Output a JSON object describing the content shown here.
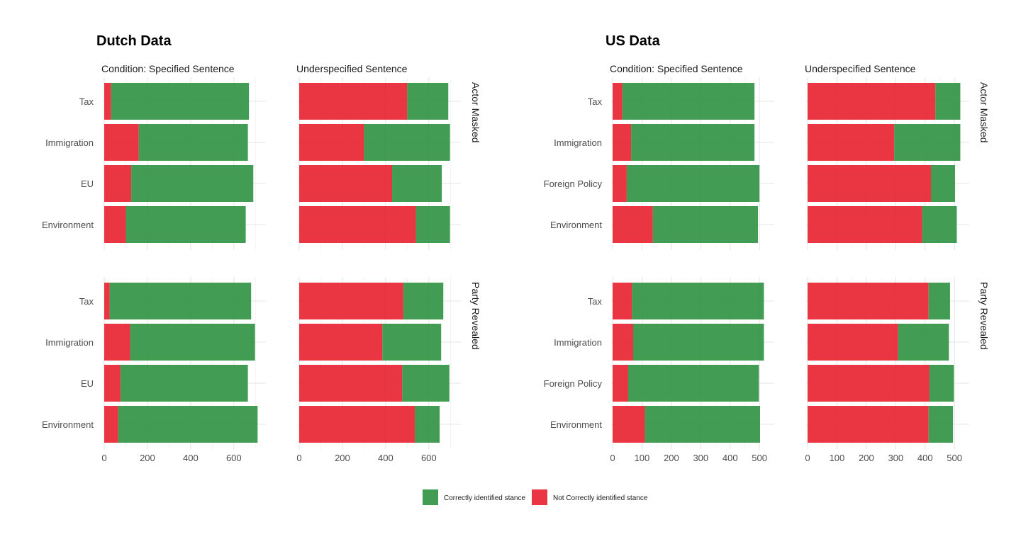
{
  "colors": {
    "correct": "#2E9140",
    "incorrect": "#E8202F"
  },
  "legend": [
    {
      "label": "Correctly identified stance",
      "color": "#2E9140"
    },
    {
      "label": "Not Correctly identified stance",
      "color": "#E8202F"
    }
  ],
  "chart_data": [
    {
      "type": "bar",
      "orientation": "horizontal",
      "stacked": true,
      "title": "Dutch Data",
      "column_labels": [
        "Condition: Specified Sentence",
        "Underspecified Sentence"
      ],
      "row_labels": [
        "Actor Masked",
        "Party Revealed"
      ],
      "xlim": [
        0,
        740
      ],
      "x_ticks": [
        0,
        200,
        400,
        600
      ],
      "categories": [
        "Tax",
        "Immigration",
        "EU",
        "Environment"
      ],
      "panels": [
        {
          "column": 0,
          "row": 0,
          "series": [
            {
              "name": "Not Correctly identified stance",
              "values": [
                32,
                160,
                125,
                100
              ]
            },
            {
              "name": "Correctly identified stance",
              "values": [
                638,
                505,
                565,
                555
              ]
            }
          ]
        },
        {
          "column": 1,
          "row": 0,
          "series": [
            {
              "name": "Not Correctly identified stance",
              "values": [
                500,
                300,
                430,
                540
              ]
            },
            {
              "name": "Correctly identified stance",
              "values": [
                190,
                398,
                230,
                158
              ]
            }
          ]
        },
        {
          "column": 0,
          "row": 1,
          "series": [
            {
              "name": "Not Correctly identified stance",
              "values": [
                25,
                120,
                75,
                65
              ]
            },
            {
              "name": "Correctly identified stance",
              "values": [
                655,
                578,
                590,
                645
              ]
            }
          ]
        },
        {
          "column": 1,
          "row": 1,
          "series": [
            {
              "name": "Not Correctly identified stance",
              "values": [
                482,
                385,
                477,
                535
              ]
            },
            {
              "name": "Correctly identified stance",
              "values": [
                185,
                272,
                218,
                115
              ]
            }
          ]
        }
      ]
    },
    {
      "type": "bar",
      "orientation": "horizontal",
      "stacked": true,
      "title": "US Data",
      "column_labels": [
        "Condition: Specified Sentence",
        "Underspecified Sentence"
      ],
      "row_labels": [
        "Actor Masked",
        "Party Revealed"
      ],
      "xlim": [
        0,
        540
      ],
      "x_ticks": [
        0,
        100,
        200,
        300,
        400,
        500
      ],
      "categories": [
        "Tax",
        "Immigration",
        "Foreign Policy",
        "Environment"
      ],
      "panels": [
        {
          "column": 0,
          "row": 0,
          "series": [
            {
              "name": "Not Correctly identified stance",
              "values": [
                33,
                63,
                48,
                137
              ]
            },
            {
              "name": "Correctly identified stance",
              "values": [
                450,
                420,
                452,
                358
              ]
            }
          ]
        },
        {
          "column": 1,
          "row": 0,
          "series": [
            {
              "name": "Not Correctly identified stance",
              "values": [
                435,
                295,
                420,
                390
              ]
            },
            {
              "name": "Correctly identified stance",
              "values": [
                85,
                225,
                82,
                118
              ]
            }
          ]
        },
        {
          "column": 0,
          "row": 1,
          "series": [
            {
              "name": "Not Correctly identified stance",
              "values": [
                66,
                70,
                53,
                110
              ]
            },
            {
              "name": "Correctly identified stance",
              "values": [
                449,
                445,
                445,
                392
              ]
            }
          ]
        },
        {
          "column": 1,
          "row": 1,
          "series": [
            {
              "name": "Not Correctly identified stance",
              "values": [
                412,
                308,
                415,
                412
              ]
            },
            {
              "name": "Correctly identified stance",
              "values": [
                73,
                173,
                83,
                83
              ]
            }
          ]
        }
      ]
    }
  ]
}
